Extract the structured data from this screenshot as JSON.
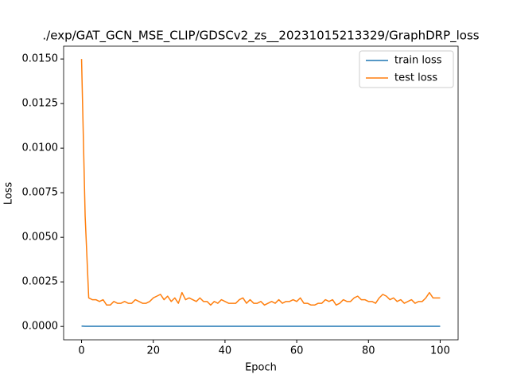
{
  "chart_data": {
    "type": "line",
    "title": "./exp/GAT_GCN_MSE_CLIP/GDSCv2_zs__20231015213329/GraphDRP_loss",
    "x_label": "Epoch",
    "y_label": "Loss",
    "x": [
      0,
      1,
      2,
      3,
      4,
      5,
      6,
      7,
      8,
      9,
      10,
      11,
      12,
      13,
      14,
      15,
      16,
      17,
      18,
      19,
      20,
      21,
      22,
      23,
      24,
      25,
      26,
      27,
      28,
      29,
      30,
      31,
      32,
      33,
      34,
      35,
      36,
      37,
      38,
      39,
      40,
      41,
      42,
      43,
      44,
      45,
      46,
      47,
      48,
      49,
      50,
      51,
      52,
      53,
      54,
      55,
      56,
      57,
      58,
      59,
      60,
      61,
      62,
      63,
      64,
      65,
      66,
      67,
      68,
      69,
      70,
      71,
      72,
      73,
      74,
      75,
      76,
      77,
      78,
      79,
      80,
      81,
      82,
      83,
      84,
      85,
      86,
      87,
      88,
      89,
      90,
      91,
      92,
      93,
      94,
      95,
      96,
      97,
      98,
      99,
      100
    ],
    "series": [
      {
        "name": "train loss",
        "color": "#1f77b4",
        "values": [
          2e-05,
          1e-05,
          1e-05,
          1e-05,
          1e-05,
          1e-05,
          1e-05,
          1e-05,
          1e-05,
          1e-05,
          1e-05,
          1e-05,
          1e-05,
          1e-05,
          1e-05,
          1e-05,
          1e-05,
          1e-05,
          1e-05,
          1e-05,
          1e-05,
          1e-05,
          1e-05,
          1e-05,
          1e-05,
          1e-05,
          1e-05,
          1e-05,
          1e-05,
          1e-05,
          1e-05,
          1e-05,
          1e-05,
          1e-05,
          1e-05,
          1e-05,
          1e-05,
          1e-05,
          1e-05,
          1e-05,
          1e-05,
          1e-05,
          1e-05,
          1e-05,
          1e-05,
          1e-05,
          1e-05,
          1e-05,
          1e-05,
          1e-05,
          1e-05,
          1e-05,
          1e-05,
          1e-05,
          1e-05,
          1e-05,
          1e-05,
          1e-05,
          1e-05,
          1e-05,
          1e-05,
          1e-05,
          1e-05,
          1e-05,
          1e-05,
          1e-05,
          1e-05,
          1e-05,
          1e-05,
          1e-05,
          1e-05,
          1e-05,
          1e-05,
          1e-05,
          1e-05,
          1e-05,
          1e-05,
          1e-05,
          1e-05,
          1e-05,
          1e-05,
          1e-05,
          1e-05,
          1e-05,
          1e-05,
          1e-05,
          1e-05,
          1e-05,
          1e-05,
          1e-05,
          1e-05,
          1e-05,
          1e-05,
          1e-05,
          1e-05,
          1e-05,
          1e-05,
          1e-05,
          1e-05,
          1e-05,
          1e-05
        ]
      },
      {
        "name": "test loss",
        "color": "#ff7f0e",
        "values": [
          0.015,
          0.0062,
          0.0016,
          0.0015,
          0.0015,
          0.0014,
          0.0015,
          0.0012,
          0.0012,
          0.0014,
          0.0013,
          0.0013,
          0.0014,
          0.0013,
          0.0013,
          0.0015,
          0.0014,
          0.0013,
          0.0013,
          0.0014,
          0.0016,
          0.0017,
          0.0018,
          0.0015,
          0.0017,
          0.0014,
          0.0016,
          0.0013,
          0.0019,
          0.0015,
          0.0016,
          0.0015,
          0.0014,
          0.0016,
          0.0014,
          0.0014,
          0.0012,
          0.0014,
          0.0013,
          0.0015,
          0.0014,
          0.0013,
          0.0013,
          0.0013,
          0.0015,
          0.0016,
          0.0013,
          0.0015,
          0.0013,
          0.0013,
          0.0014,
          0.0012,
          0.0013,
          0.0014,
          0.0013,
          0.0015,
          0.0013,
          0.0014,
          0.0014,
          0.0015,
          0.0014,
          0.0016,
          0.0013,
          0.0013,
          0.0012,
          0.0012,
          0.0013,
          0.0013,
          0.0015,
          0.0014,
          0.0015,
          0.0012,
          0.0013,
          0.0015,
          0.0014,
          0.0014,
          0.0016,
          0.0017,
          0.0015,
          0.0015,
          0.0014,
          0.0014,
          0.0013,
          0.0016,
          0.0018,
          0.0017,
          0.0015,
          0.0016,
          0.0014,
          0.0015,
          0.0013,
          0.0014,
          0.0015,
          0.0013,
          0.0014,
          0.0014,
          0.0016,
          0.0019,
          0.0016,
          0.0016,
          0.0016
        ]
      }
    ],
    "xlim": [
      -5,
      105
    ],
    "ylim": [
      -0.00075,
      0.01572
    ],
    "xticks": [
      0,
      20,
      40,
      60,
      80,
      100
    ],
    "yticks": [
      {
        "value": 0,
        "label": "0.0000"
      },
      {
        "value": 0.0025,
        "label": "0.0025"
      },
      {
        "value": 0.005,
        "label": "0.0050"
      },
      {
        "value": 0.0075,
        "label": "0.0075"
      },
      {
        "value": 0.01,
        "label": "0.0100"
      },
      {
        "value": 0.0125,
        "label": "0.0125"
      },
      {
        "value": 0.015,
        "label": "0.0150"
      }
    ],
    "legend": "upper right",
    "grid": false
  }
}
